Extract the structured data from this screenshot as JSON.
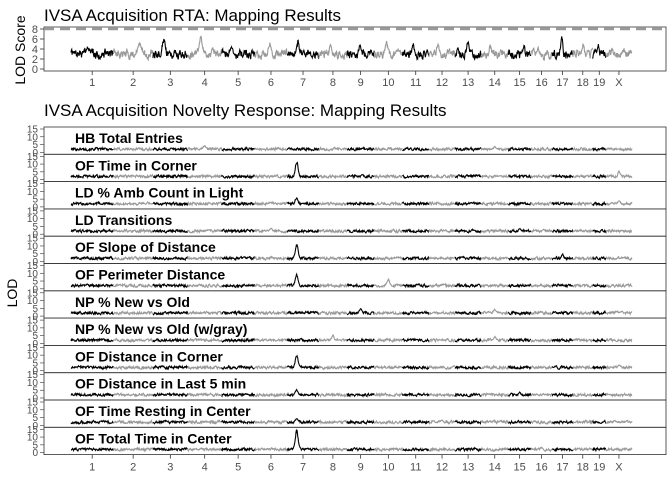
{
  "chart_data": [
    {
      "type": "line",
      "title": "IVSA Acquisition RTA: Mapping Results",
      "ylabel": "LOD Score",
      "xlabel": "",
      "ylim": [
        0,
        8
      ],
      "yticks": [
        0,
        2,
        4,
        6,
        8
      ],
      "threshold": 8,
      "threshold_style": "dashed gray line",
      "chromosomes": [
        "1",
        "2",
        "3",
        "4",
        "5",
        "6",
        "7",
        "8",
        "9",
        "10",
        "11",
        "12",
        "13",
        "14",
        "15",
        "16",
        "17",
        "18",
        "19",
        "X"
      ],
      "chromosome_colors": [
        "#000000",
        "#999999"
      ],
      "peaks": [
        {
          "chromosome": "1",
          "lod": 4.5
        },
        {
          "chromosome": "2",
          "lod": 5.6
        },
        {
          "chromosome": "3",
          "lod": 6.3
        },
        {
          "chromosome": "4",
          "lod": 6.9
        },
        {
          "chromosome": "5",
          "lod": 4.8
        },
        {
          "chromosome": "6",
          "lod": 5.3
        },
        {
          "chromosome": "7",
          "lod": 5.8
        },
        {
          "chromosome": "8",
          "lod": 5.1
        },
        {
          "chromosome": "9",
          "lod": 4.9
        },
        {
          "chromosome": "10",
          "lod": 5.7
        },
        {
          "chromosome": "11",
          "lod": 5.2
        },
        {
          "chromosome": "12",
          "lod": 5.5
        },
        {
          "chromosome": "13",
          "lod": 6.0
        },
        {
          "chromosome": "14",
          "lod": 5.0
        },
        {
          "chromosome": "15",
          "lod": 5.0
        },
        {
          "chromosome": "16",
          "lod": 4.6
        },
        {
          "chromosome": "17",
          "lod": 6.8
        },
        {
          "chromosome": "18",
          "lod": 5.4
        },
        {
          "chromosome": "19",
          "lod": 5.1
        },
        {
          "chromosome": "X",
          "lod": 4.2
        }
      ]
    },
    {
      "type": "line",
      "title": "IVSA Acquisition Novelty Response: Mapping Results",
      "ylabel": "LOD",
      "xlabel": "",
      "ylim": [
        0,
        15
      ],
      "yticks": [
        0,
        5,
        10,
        15
      ],
      "chromosomes": [
        "1",
        "2",
        "3",
        "4",
        "5",
        "6",
        "7",
        "8",
        "9",
        "10",
        "11",
        "12",
        "13",
        "14",
        "15",
        "16",
        "17",
        "18",
        "19",
        "X"
      ],
      "chromosome_colors": [
        "#000000",
        "#999999"
      ],
      "panels": [
        {
          "name": "HB Total Entries",
          "peaks": [
            {
              "chromosome": "4",
              "lod": 4.5
            },
            {
              "chromosome": "14",
              "lod": 4.0
            }
          ]
        },
        {
          "name": "OF Time in Corner",
          "peaks": [
            {
              "chromosome": "7",
              "lod": 12.5
            },
            {
              "chromosome": "X",
              "lod": 5.5
            }
          ]
        },
        {
          "name": "LD % Amb Count in Light",
          "peaks": [
            {
              "chromosome": "7",
              "lod": 6.0
            },
            {
              "chromosome": "X",
              "lod": 4.5
            }
          ]
        },
        {
          "name": "LD Transitions",
          "peaks": [
            {
              "chromosome": "6",
              "lod": 4.0
            },
            {
              "chromosome": "15",
              "lod": 3.8
            }
          ]
        },
        {
          "name": "OF Slope of Distance",
          "peaks": [
            {
              "chromosome": "7",
              "lod": 11.5
            },
            {
              "chromosome": "17",
              "lod": 5.0
            }
          ]
        },
        {
          "name": "OF Perimeter Distance",
          "peaks": [
            {
              "chromosome": "7",
              "lod": 9.5
            },
            {
              "chromosome": "10",
              "lod": 6.5
            }
          ]
        },
        {
          "name": "NP % New vs Old",
          "peaks": [
            {
              "chromosome": "9",
              "lod": 5.0
            },
            {
              "chromosome": "14",
              "lod": 4.5
            }
          ]
        },
        {
          "name": "NP % New vs Old (w/gray)",
          "peaks": [
            {
              "chromosome": "8",
              "lod": 5.5
            },
            {
              "chromosome": "14",
              "lod": 4.5
            }
          ]
        },
        {
          "name": "OF Distance in Corner",
          "peaks": [
            {
              "chromosome": "7",
              "lod": 10.5
            },
            {
              "chromosome": "X",
              "lod": 4.0
            }
          ]
        },
        {
          "name": "OF Distance in Last 5 min",
          "peaks": [
            {
              "chromosome": "7",
              "lod": 5.5
            },
            {
              "chromosome": "15",
              "lod": 4.0
            }
          ]
        },
        {
          "name": "OF Time Resting in Center",
          "peaks": [
            {
              "chromosome": "7",
              "lod": 4.5
            },
            {
              "chromosome": "12",
              "lod": 3.5
            }
          ]
        },
        {
          "name": "OF Total Time in Center",
          "peaks": [
            {
              "chromosome": "7",
              "lod": 15.0
            },
            {
              "chromosome": "16",
              "lod": 3.5
            }
          ]
        }
      ]
    }
  ]
}
